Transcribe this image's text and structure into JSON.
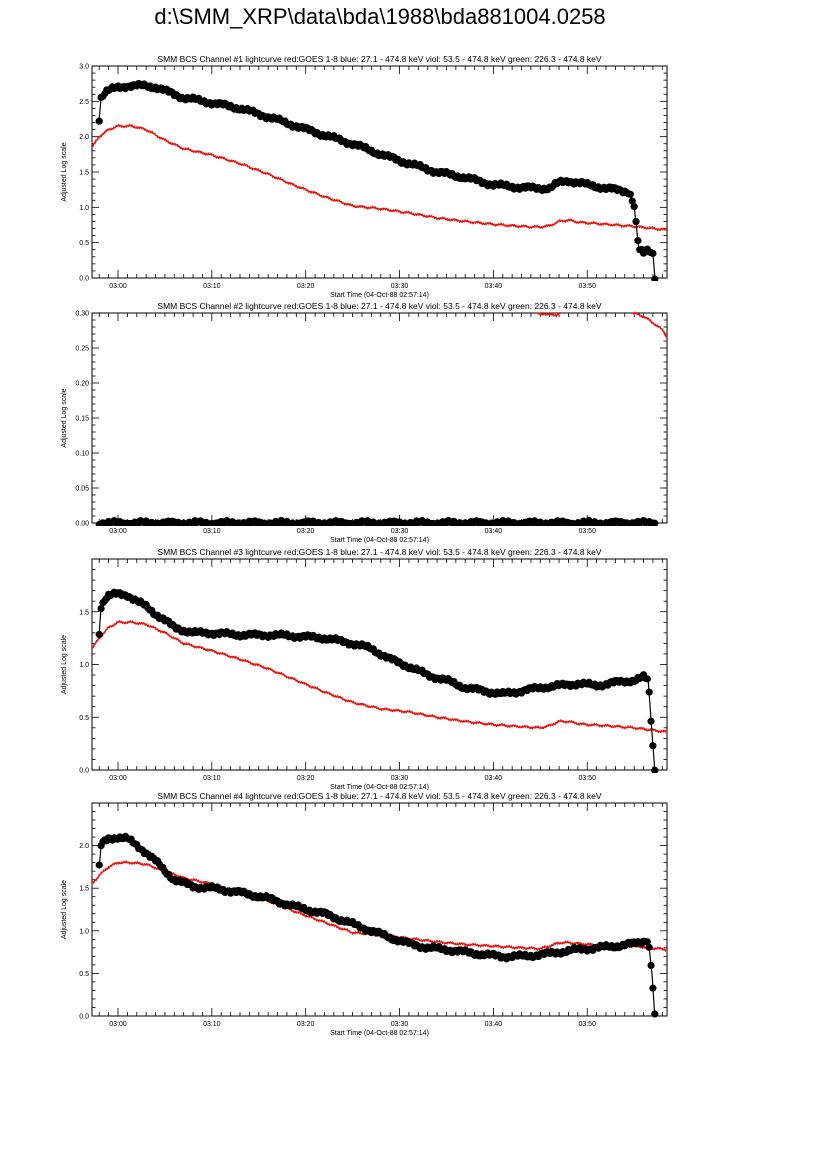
{
  "page": {
    "title": "d:\\SMM_XRP\\data\\bda\\1988\\bda881004.0258"
  },
  "colors": {
    "goes": "#e8150f",
    "bcs": "#000000"
  },
  "chart_data": [
    {
      "type": "line",
      "title": "SMM BCS Channel #1 lightcurve  red:GOES 1-8  blue: 27.1 - 474.8 keV  viol: 53.5 - 474.8 keV  green: 226.3 - 474.8 keV",
      "xlabel": "Start Time (04-Oct-88 02:57:14)",
      "ylabel": "Adjusted Log scale",
      "xlim": [
        -2.77,
        58.5
      ],
      "ylim": [
        0.0,
        3.0
      ],
      "yticks": [
        0.0,
        0.5,
        1.0,
        1.5,
        2.0,
        2.5,
        3.0
      ],
      "ytick_labels": [
        "0.0",
        "0.5",
        "1.0",
        "1.5",
        "2.0",
        "2.5",
        "3.0"
      ],
      "xticks": [
        0,
        10,
        20,
        30,
        40,
        50
      ],
      "xtick_labels": [
        "03:00",
        "03:10",
        "03:20",
        "03:30",
        "03:40",
        "03:50"
      ],
      "series": [
        {
          "role": "goes",
          "x": [
            -2.77,
            -2.0,
            -1.0,
            0,
            1.5,
            3,
            5,
            7,
            10,
            13,
            16,
            19,
            22,
            25,
            28,
            31,
            34,
            37,
            40,
            43,
            45,
            46,
            47,
            48,
            49,
            50,
            52,
            55,
            58.5
          ],
          "y": [
            1.85,
            2.0,
            2.1,
            2.15,
            2.15,
            2.1,
            1.95,
            1.83,
            1.74,
            1.62,
            1.47,
            1.3,
            1.15,
            1.02,
            0.98,
            0.92,
            0.85,
            0.8,
            0.76,
            0.73,
            0.72,
            0.74,
            0.8,
            0.82,
            0.79,
            0.78,
            0.76,
            0.73,
            0.68
          ]
        },
        {
          "role": "bcs",
          "x": [
            -2.0,
            -1.8,
            -1.4,
            -1.0,
            0,
            1,
            2,
            3,
            4,
            5,
            7,
            10,
            13,
            16,
            19,
            22,
            25,
            28,
            31,
            34,
            37,
            40,
            43,
            45,
            46,
            47,
            48,
            49,
            50,
            52,
            54.5,
            55,
            55.5,
            56,
            56.5,
            57,
            57.2
          ],
          "y": [
            2.25,
            2.55,
            2.62,
            2.65,
            2.7,
            2.72,
            2.72,
            2.72,
            2.7,
            2.65,
            2.55,
            2.48,
            2.4,
            2.28,
            2.15,
            2.02,
            1.9,
            1.75,
            1.62,
            1.5,
            1.42,
            1.32,
            1.28,
            1.27,
            1.27,
            1.35,
            1.38,
            1.35,
            1.32,
            1.27,
            1.22,
            1.02,
            0.4,
            0.35,
            0.4,
            0.35,
            0.02
          ]
        }
      ]
    },
    {
      "type": "line",
      "title": "SMM BCS Channel #2 lightcurve  red:GOES 1-8  blue: 27.1 - 474.8 keV  viol: 53.5 - 474.8 keV  green: 226.3 - 474.8 keV",
      "xlabel": "Start Time (04-Oct-88 02:57:14)",
      "ylabel": "Adjusted Log scale",
      "xlim": [
        -2.77,
        58.5
      ],
      "ylim": [
        0.0,
        0.3
      ],
      "yticks": [
        0.0,
        0.05,
        0.1,
        0.15,
        0.2,
        0.25,
        0.3
      ],
      "ytick_labels": [
        "0.00",
        "0.05",
        "0.10",
        "0.15",
        "0.20",
        "0.25",
        "0.30"
      ],
      "xticks": [
        0,
        10,
        20,
        30,
        40,
        50
      ],
      "xtick_labels": [
        "03:00",
        "03:10",
        "03:20",
        "03:30",
        "03:40",
        "03:50"
      ],
      "series": [
        {
          "role": "goes",
          "x": [
            44.7,
            45.2,
            45.7,
            46.2,
            46.7,
            47.2
          ],
          "y": [
            0.3,
            0.299,
            0.297,
            0.299,
            0.296,
            0.3
          ]
        },
        {
          "role": "goes",
          "x": [
            54.8,
            55.4,
            56.0,
            56.6,
            57.1,
            57.6,
            58.1,
            58.5
          ],
          "y": [
            0.3,
            0.298,
            0.295,
            0.29,
            0.285,
            0.28,
            0.275,
            0.265
          ]
        },
        {
          "role": "bcs",
          "x": [
            -2.0,
            57.2
          ],
          "y": [
            0.0,
            0.0
          ]
        }
      ]
    },
    {
      "type": "line",
      "title": "SMM BCS Channel #3 lightcurve  red:GOES 1-8  blue: 27.1 - 474.8 keV  viol: 53.5 - 474.8 keV  green: 226.3 - 474.8 keV",
      "xlabel": "Start Time (04-Oct-88 02:57:14)",
      "ylabel": "Adjusted Log scale",
      "xlim": [
        -2.77,
        58.5
      ],
      "ylim": [
        0.0,
        2.0
      ],
      "yticks": [
        0.0,
        0.5,
        1.0,
        1.5
      ],
      "ytick_labels": [
        "0.0",
        "0.5",
        "1.0",
        "1.5"
      ],
      "xticks": [
        0,
        10,
        20,
        30,
        40,
        50
      ],
      "xtick_labels": [
        "03:00",
        "03:10",
        "03:20",
        "03:30",
        "03:40",
        "03:50"
      ],
      "series": [
        {
          "role": "goes",
          "x": [
            -2.77,
            -2.0,
            -1.0,
            0,
            1.5,
            3,
            5,
            7,
            10,
            13,
            16,
            19,
            22,
            25,
            28,
            31,
            34,
            37,
            40,
            43,
            45,
            46,
            47,
            48,
            49,
            50,
            52,
            55,
            58.5
          ],
          "y": [
            1.15,
            1.25,
            1.35,
            1.4,
            1.4,
            1.38,
            1.3,
            1.2,
            1.13,
            1.05,
            0.96,
            0.85,
            0.74,
            0.64,
            0.58,
            0.55,
            0.5,
            0.46,
            0.43,
            0.41,
            0.4,
            0.42,
            0.46,
            0.46,
            0.44,
            0.43,
            0.42,
            0.4,
            0.36
          ]
        },
        {
          "role": "bcs",
          "x": [
            -2.0,
            -1.8,
            -1.4,
            -1.0,
            0,
            1,
            2,
            3,
            4,
            5,
            6,
            8,
            10,
            13,
            16,
            19,
            22,
            25,
            27,
            29,
            31,
            33,
            35,
            37,
            39,
            41,
            43,
            45,
            47,
            49,
            51,
            53,
            55,
            56,
            56.5,
            56.9,
            57.2
          ],
          "y": [
            1.3,
            1.55,
            1.62,
            1.65,
            1.67,
            1.66,
            1.6,
            1.55,
            1.48,
            1.42,
            1.35,
            1.3,
            1.3,
            1.28,
            1.28,
            1.27,
            1.25,
            1.2,
            1.15,
            1.05,
            0.98,
            0.9,
            0.85,
            0.78,
            0.75,
            0.72,
            0.75,
            0.78,
            0.8,
            0.82,
            0.8,
            0.83,
            0.85,
            0.88,
            0.85,
            0.35,
            0.0
          ]
        }
      ]
    },
    {
      "type": "line",
      "title": "SMM BCS Channel #4 lightcurve  red:GOES 1-8  blue: 27.1 - 474.8 keV  viol: 53.5 - 474.8 keV  green: 226.3 - 474.8 keV",
      "xlabel": "Start Time (04-Oct-88 02:57:14)",
      "ylabel": "Adjusted Log scale",
      "xlim": [
        -2.77,
        58.5
      ],
      "ylim": [
        0.0,
        2.5
      ],
      "yticks": [
        0.0,
        0.5,
        1.0,
        1.5,
        2.0
      ],
      "ytick_labels": [
        "0.0",
        "0.5",
        "1.0",
        "1.5",
        "2.0"
      ],
      "xticks": [
        0,
        10,
        20,
        30,
        40,
        50
      ],
      "xtick_labels": [
        "03:00",
        "03:10",
        "03:20",
        "03:30",
        "03:40",
        "03:50"
      ],
      "series": [
        {
          "role": "goes",
          "x": [
            -2.77,
            -2.0,
            -1.0,
            0,
            1.5,
            3,
            5,
            7,
            10,
            13,
            16,
            19,
            22,
            25,
            28,
            31,
            34,
            37,
            40,
            43,
            45,
            46,
            47,
            48,
            49,
            50,
            52,
            55,
            58.5
          ],
          "y": [
            1.55,
            1.65,
            1.75,
            1.8,
            1.8,
            1.78,
            1.7,
            1.62,
            1.55,
            1.45,
            1.35,
            1.22,
            1.1,
            0.98,
            0.95,
            0.91,
            0.87,
            0.84,
            0.82,
            0.8,
            0.79,
            0.82,
            0.86,
            0.86,
            0.85,
            0.84,
            0.83,
            0.82,
            0.78
          ]
        },
        {
          "role": "bcs",
          "x": [
            -2.0,
            -1.8,
            -1.4,
            -1.0,
            0,
            1,
            2,
            3,
            4,
            5,
            6,
            8,
            10,
            13,
            16,
            19,
            22,
            25,
            27,
            29,
            31,
            33,
            35,
            37,
            39,
            41,
            43,
            45,
            47,
            49,
            51,
            53,
            55,
            56,
            56.5,
            56.9,
            57.2
          ],
          "y": [
            1.75,
            2.0,
            2.05,
            2.08,
            2.1,
            2.08,
            2.0,
            1.92,
            1.82,
            1.7,
            1.6,
            1.52,
            1.5,
            1.45,
            1.38,
            1.28,
            1.2,
            1.08,
            1.0,
            0.92,
            0.85,
            0.8,
            0.78,
            0.75,
            0.72,
            0.7,
            0.7,
            0.72,
            0.75,
            0.78,
            0.8,
            0.82,
            0.85,
            0.88,
            0.9,
            0.5,
            0.0
          ]
        }
      ]
    }
  ]
}
